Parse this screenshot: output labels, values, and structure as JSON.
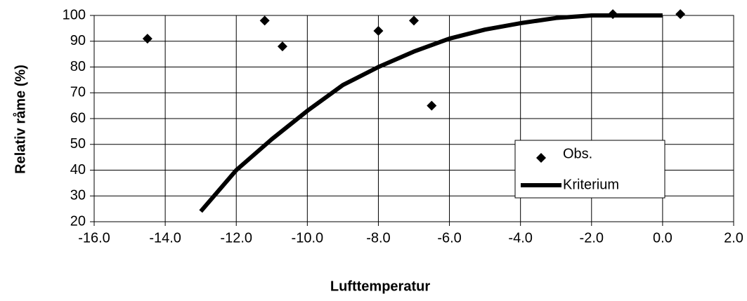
{
  "chart_data": {
    "type": "scatter_line",
    "xlabel": "Lufttemperatur",
    "ylabel": "Relativ råme (%)",
    "xlim": [
      -16,
      2
    ],
    "ylim": [
      20,
      100
    ],
    "xticks": [
      {
        "value": -16,
        "label": "-16.0"
      },
      {
        "value": -14,
        "label": "-14.0"
      },
      {
        "value": -12,
        "label": "-12.0"
      },
      {
        "value": -10,
        "label": "-10.0"
      },
      {
        "value": -8,
        "label": "-8.0"
      },
      {
        "value": -6,
        "label": "-6.0"
      },
      {
        "value": -4,
        "label": "-4.0"
      },
      {
        "value": -2,
        "label": "-2.0"
      },
      {
        "value": 0,
        "label": "0.0"
      },
      {
        "value": 2,
        "label": "2.0"
      }
    ],
    "yticks": [
      20,
      30,
      40,
      50,
      60,
      70,
      80,
      90,
      100
    ],
    "grid": true,
    "legend": "lower right",
    "series": [
      {
        "name": "Obs.",
        "kind": "scatter",
        "color": "#000000",
        "x": [
          -14.5,
          -11.2,
          -10.7,
          -8.0,
          -7.0,
          -6.5,
          -1.4,
          0.5
        ],
        "values": [
          91,
          98,
          88,
          94,
          98,
          65,
          100.5,
          100.5
        ]
      },
      {
        "name": "Kriterium",
        "kind": "line",
        "color": "#000000",
        "x": [
          -13,
          -12,
          -11,
          -10,
          -9,
          -8,
          -7,
          -6,
          -5,
          -4,
          -3,
          -2,
          -1,
          0
        ],
        "values": [
          24,
          40,
          52,
          63,
          73,
          80,
          86,
          91,
          94.5,
          97,
          99,
          100,
          100,
          100
        ]
      }
    ]
  }
}
